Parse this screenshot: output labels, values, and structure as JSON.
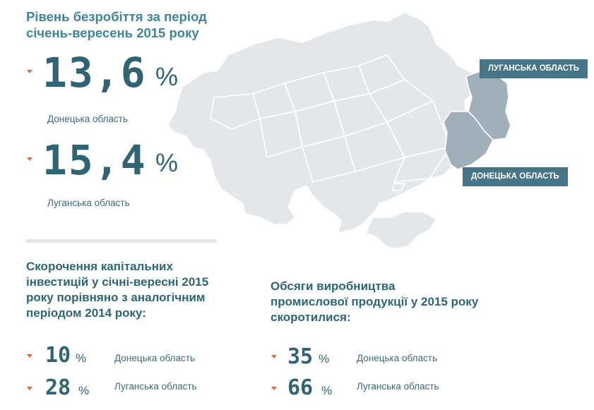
{
  "unemployment": {
    "title_line1": "Рівень безробіття за період",
    "title_line2": "січень-вересень 2015 року",
    "items": [
      {
        "value": "13,6",
        "unit": "%",
        "region": "Донецька область"
      },
      {
        "value": "15,4",
        "unit": "%",
        "region": "Луганська область"
      }
    ]
  },
  "map": {
    "labels": {
      "luhansk": "ЛУГАНСЬКА ОБЛАСТЬ",
      "donetsk": "ДОНЕЦЬКА ОБЛАСТЬ"
    },
    "colors": {
      "country": "#e3e7e9",
      "highlight": "#9fb0bb",
      "tag": "#467587"
    }
  },
  "investment": {
    "title_lines": [
      "Скорочення капітальних",
      "інвестицій у січні-вересні 2015",
      "року порівняно з аналогічним",
      "періодом 2014 року:"
    ],
    "items": [
      {
        "value": "10",
        "unit": "%",
        "region": "Донецька область"
      },
      {
        "value": "28",
        "unit": "%",
        "region": "Луганська область"
      }
    ]
  },
  "industry": {
    "title_lines": [
      "Обсяги виробництва",
      "промислової продукції у 2015 року",
      "скоротилися:"
    ],
    "items": [
      {
        "value": "35",
        "unit": "%",
        "region": "Донецька область"
      },
      {
        "value": "66",
        "unit": "%",
        "region": "Луганська область"
      }
    ]
  },
  "colors": {
    "accent": "#e0663c",
    "primary": "#2e6474"
  }
}
